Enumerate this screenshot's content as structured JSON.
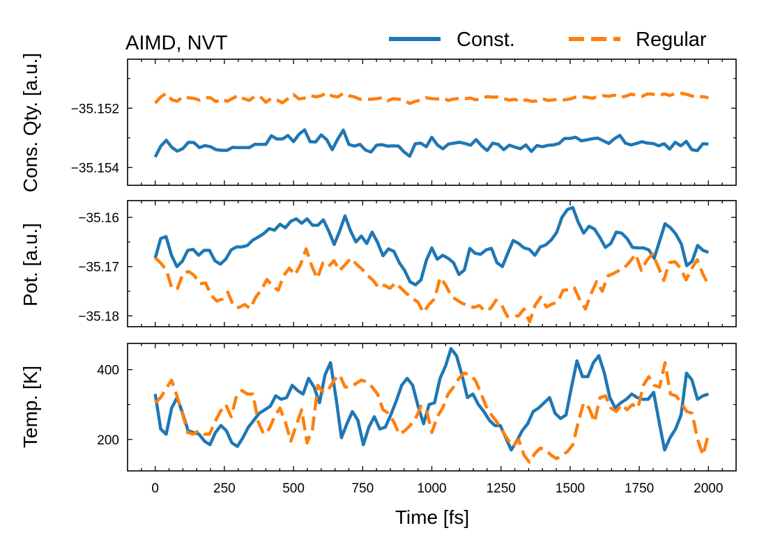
{
  "chart_data": {
    "type": "line",
    "title": "AIMD, NVT",
    "xlabel": "Time [fs]",
    "xlim": [
      -100,
      2100
    ],
    "x_ticks": [
      0,
      250,
      500,
      750,
      1000,
      1250,
      1500,
      1750,
      2000
    ],
    "legend": {
      "position": "top-right",
      "entries": [
        {
          "label": "Const.",
          "color": "#1f77b4",
          "style": "solid"
        },
        {
          "label": "Regular",
          "color": "#ff7f0e",
          "style": "dashed"
        }
      ]
    },
    "panels": [
      {
        "name": "conserved",
        "ylabel": "Cons. Qty. [a.u.]",
        "ylim": [
          -35.1546,
          -35.15035
        ],
        "y_ticks": [
          -35.152,
          -35.154
        ],
        "y_tick_labels": [
          "−35.152",
          "−35.154"
        ],
        "series": [
          {
            "name": "Const.",
            "values": [
              -35.15365,
              -35.15328,
              -35.15308,
              -35.15332,
              -35.15345,
              -35.15336,
              -35.15315,
              -35.15316,
              -35.15333,
              -35.15326,
              -35.1533,
              -35.1534,
              -35.15342,
              -35.15342,
              -35.15332,
              -35.15333,
              -35.15333,
              -35.15333,
              -35.15322,
              -35.15322,
              -35.15322,
              -35.15293,
              -35.15304,
              -35.15304,
              -35.15292,
              -35.15313,
              -35.15288,
              -35.15273,
              -35.15313,
              -35.15314,
              -35.1529,
              -35.15306,
              -35.1534,
              -35.15304,
              -35.15274,
              -35.15322,
              -35.15328,
              -35.15322,
              -35.15341,
              -35.15348,
              -35.15325,
              -35.15323,
              -35.15328,
              -35.15327,
              -35.15328,
              -35.15348,
              -35.15362,
              -35.1532,
              -35.15318,
              -35.1533,
              -35.15298,
              -35.15324,
              -35.15337,
              -35.15321,
              -35.15318,
              -35.15315,
              -35.15319,
              -35.15325,
              -35.15306,
              -35.15327,
              -35.15343,
              -35.15318,
              -35.15322,
              -35.1534,
              -35.15325,
              -35.15331,
              -35.15337,
              -35.15324,
              -35.15346,
              -35.15326,
              -35.1533,
              -35.15325,
              -35.15324,
              -35.15319,
              -35.15302,
              -35.15302,
              -35.15298,
              -35.1531,
              -35.15307,
              -35.15303,
              -35.15301,
              -35.1531,
              -35.15319,
              -35.15303,
              -35.15292,
              -35.15318,
              -35.15324,
              -35.15319,
              -35.15313,
              -35.15318,
              -35.15319,
              -35.15327,
              -35.1532,
              -35.15338,
              -35.15315,
              -35.15327,
              -35.15312,
              -35.1534,
              -35.15343,
              -35.1532,
              -35.15321
            ]
          },
          {
            "name": "Regular",
            "values": [
              -35.15183,
              -35.15162,
              -35.1515,
              -35.15172,
              -35.15177,
              -35.15161,
              -35.15165,
              -35.15167,
              -35.15173,
              -35.15165,
              -35.15165,
              -35.15178,
              -35.15169,
              -35.15177,
              -35.15167,
              -35.15157,
              -35.15168,
              -35.15174,
              -35.1516,
              -35.15161,
              -35.1518,
              -35.15167,
              -35.15172,
              -35.15182,
              -35.15168,
              -35.15154,
              -35.15169,
              -35.15166,
              -35.15157,
              -35.15162,
              -35.15158,
              -35.15148,
              -35.15159,
              -35.15162,
              -35.1515,
              -35.15158,
              -35.15162,
              -35.1517,
              -35.1517,
              -35.1517,
              -35.15168,
              -35.15165,
              -35.15175,
              -35.15168,
              -35.1517,
              -35.15173,
              -35.15184,
              -35.15177,
              -35.15173,
              -35.15165,
              -35.15168,
              -35.15169,
              -35.15166,
              -35.15174,
              -35.15169,
              -35.15167,
              -35.15168,
              -35.15166,
              -35.15172,
              -35.15167,
              -35.15161,
              -35.15163,
              -35.15162,
              -35.15168,
              -35.15173,
              -35.1517,
              -35.15178,
              -35.15172,
              -35.15177,
              -35.15176,
              -35.15168,
              -35.15174,
              -35.15172,
              -35.1517,
              -35.15172,
              -35.15169,
              -35.15163,
              -35.15162,
              -35.15163,
              -35.15167,
              -35.1516,
              -35.15158,
              -35.1516,
              -35.15156,
              -35.15164,
              -35.1516,
              -35.15153,
              -35.15156,
              -35.1516,
              -35.15152,
              -35.15153,
              -35.15158,
              -35.15152,
              -35.15157,
              -35.15151,
              -35.1515,
              -35.15153,
              -35.15159,
              -35.15163,
              -35.15161,
              -35.15165
            ]
          }
        ]
      },
      {
        "name": "potential",
        "ylabel": "Pot. [a.u.]",
        "ylim": [
          -35.1822,
          -35.1566
        ],
        "y_ticks": [
          -35.16,
          -35.17,
          -35.18
        ],
        "y_tick_labels": [
          "−35.16",
          "−35.17",
          "−35.18"
        ],
        "series": [
          {
            "name": "Const.",
            "values": [
              -35.1683,
              -35.1643,
              -35.1639,
              -35.1677,
              -35.17,
              -35.1689,
              -35.1667,
              -35.1665,
              -35.1677,
              -35.1667,
              -35.1667,
              -35.1688,
              -35.1695,
              -35.1685,
              -35.1666,
              -35.166,
              -35.166,
              -35.1657,
              -35.1646,
              -35.164,
              -35.1633,
              -35.1623,
              -35.1626,
              -35.1614,
              -35.1621,
              -35.1608,
              -35.1603,
              -35.1612,
              -35.1603,
              -35.1616,
              -35.1616,
              -35.1605,
              -35.1628,
              -35.1655,
              -35.1628,
              -35.1597,
              -35.1627,
              -35.165,
              -35.1638,
              -35.1653,
              -35.163,
              -35.1651,
              -35.1678,
              -35.1664,
              -35.1669,
              -35.1692,
              -35.1708,
              -35.1731,
              -35.1737,
              -35.1727,
              -35.1687,
              -35.1662,
              -35.1685,
              -35.1677,
              -35.1683,
              -35.1692,
              -35.1716,
              -35.1707,
              -35.1663,
              -35.1673,
              -35.1675,
              -35.1666,
              -35.1663,
              -35.1692,
              -35.17,
              -35.1673,
              -35.1647,
              -35.1653,
              -35.1662,
              -35.1665,
              -35.1677,
              -35.166,
              -35.1656,
              -35.1646,
              -35.1631,
              -35.16,
              -35.1584,
              -35.158,
              -35.161,
              -35.1632,
              -35.1618,
              -35.1624,
              -35.1641,
              -35.1661,
              -35.1653,
              -35.163,
              -35.1632,
              -35.1643,
              -35.1661,
              -35.1662,
              -35.1662,
              -35.1666,
              -35.1683,
              -35.1648,
              -35.1613,
              -35.1621,
              -35.1634,
              -35.1654,
              -35.1698,
              -35.1689,
              -35.1657,
              -35.1667,
              -35.1671
            ]
          },
          {
            "name": "Regular",
            "values": [
              -35.1682,
              -35.1693,
              -35.1707,
              -35.1745,
              -35.1744,
              -35.1713,
              -35.171,
              -35.1718,
              -35.1735,
              -35.1733,
              -35.1758,
              -35.177,
              -35.1766,
              -35.1752,
              -35.178,
              -35.1783,
              -35.1777,
              -35.1785,
              -35.1762,
              -35.1747,
              -35.1726,
              -35.174,
              -35.1748,
              -35.1718,
              -35.1703,
              -35.1717,
              -35.1696,
              -35.1664,
              -35.1698,
              -35.1724,
              -35.1693,
              -35.17,
              -35.1688,
              -35.1708,
              -35.1696,
              -35.1683,
              -35.1695,
              -35.1705,
              -35.1718,
              -35.1728,
              -35.1743,
              -35.1738,
              -35.1744,
              -35.1733,
              -35.1744,
              -35.1755,
              -35.1764,
              -35.1772,
              -35.1793,
              -35.1777,
              -35.1765,
              -35.1722,
              -35.1738,
              -35.176,
              -35.1768,
              -35.1775,
              -35.1779,
              -35.1783,
              -35.1779,
              -35.179,
              -35.1785,
              -35.1768,
              -35.1778,
              -35.1801,
              -35.18,
              -35.18,
              -35.1786,
              -35.1812,
              -35.1778,
              -35.1762,
              -35.1782,
              -35.1776,
              -35.1772,
              -35.1748,
              -35.1747,
              -35.1743,
              -35.1768,
              -35.1786,
              -35.1755,
              -35.173,
              -35.175,
              -35.1719,
              -35.1714,
              -35.1708,
              -35.1702,
              -35.1689,
              -35.1675,
              -35.1708,
              -35.1687,
              -35.1674,
              -35.17,
              -35.1728,
              -35.1692,
              -35.169,
              -35.1703,
              -35.1727,
              -35.1704,
              -35.1686,
              -35.1715,
              -35.1737
            ]
          }
        ]
      },
      {
        "name": "temperature",
        "ylabel": "Temp. [K]",
        "ylim": [
          110,
          475
        ],
        "y_ticks": [
          200,
          400
        ],
        "y_tick_labels": [
          "200",
          "400"
        ],
        "series": [
          {
            "name": "Const.",
            "values": [
              330,
              230,
              215,
              290,
              320,
              275,
              225,
              220,
              215,
              195,
              185,
              220,
              240,
              225,
              190,
              180,
              205,
              235,
              255,
              275,
              285,
              295,
              325,
              315,
              320,
              355,
              340,
              330,
              375,
              350,
              305,
              385,
              420,
              320,
              205,
              245,
              280,
              255,
              185,
              235,
              265,
              230,
              235,
              270,
              310,
              355,
              375,
              355,
              295,
              245,
              300,
              305,
              375,
              410,
              460,
              440,
              385,
              320,
              330,
              300,
              280,
              255,
              240,
              240,
              205,
              170,
              195,
              225,
              245,
              280,
              290,
              305,
              320,
              275,
              260,
              270,
              350,
              425,
              380,
              380,
              420,
              440,
              390,
              320,
              290,
              305,
              315,
              330,
              320,
              315,
              315,
              335,
              250,
              170,
              205,
              230,
              270,
              390,
              370,
              315,
              325,
              330
            ]
          },
          {
            "name": "Regular",
            "values": [
              305,
              320,
              345,
              370,
              325,
              275,
              220,
              215,
              225,
              215,
              215,
              250,
              280,
              300,
              265,
              325,
              340,
              330,
              330,
              250,
              215,
              230,
              265,
              290,
              250,
              195,
              240,
              285,
              190,
              230,
              355,
              335,
              345,
              370,
              385,
              350,
              350,
              360,
              370,
              365,
              350,
              330,
              285,
              275,
              250,
              215,
              225,
              240,
              260,
              295,
              285,
              220,
              265,
              290,
              330,
              350,
              375,
              390,
              385,
              370,
              335,
              295,
              270,
              250,
              225,
              200,
              180,
              200,
              155,
              135,
              160,
              175,
              170,
              155,
              145,
              155,
              165,
              185,
              250,
              305,
              290,
              250,
              320,
              325,
              290,
              280,
              300,
              285,
              300,
              290,
              355,
              380,
              355,
              350,
              420,
              330,
              325,
              305,
              280,
              275,
              200,
              155,
              215
            ]
          }
        ]
      }
    ]
  }
}
